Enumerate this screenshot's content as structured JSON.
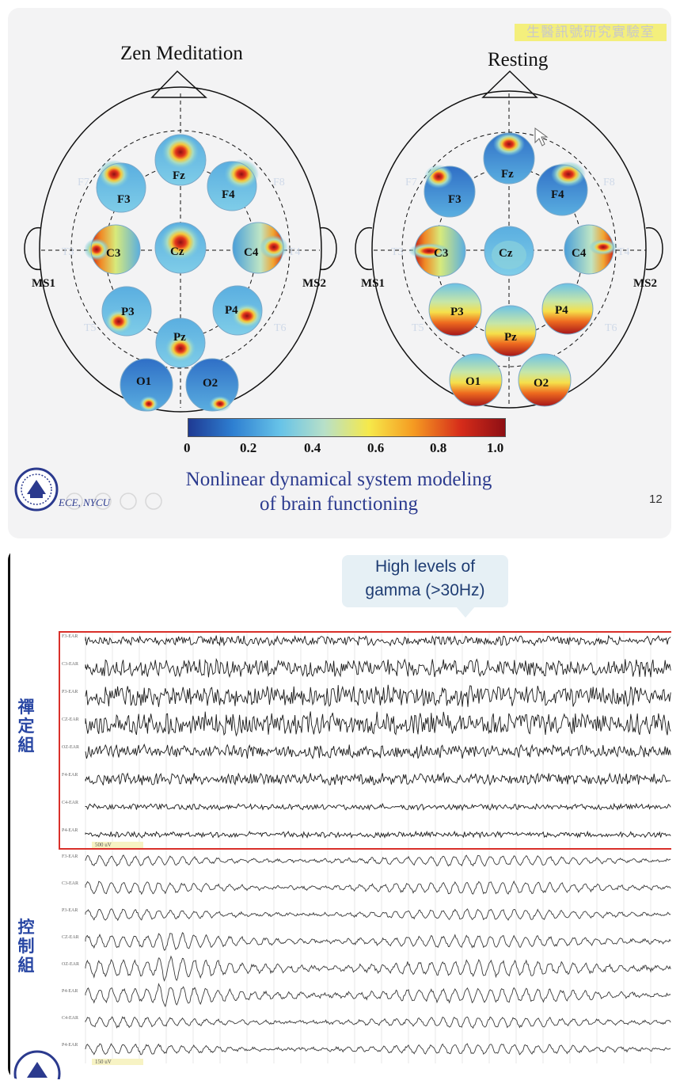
{
  "slide1": {
    "watermark": "生醫訊號研究實驗室",
    "left_title": "Zen Meditation",
    "right_title": "Resting",
    "left_head": {
      "reference_left": "MS1",
      "reference_right": "MS2",
      "electrodes": [
        {
          "label": "Fz",
          "activation": 0.95
        },
        {
          "label": "F3",
          "activation": 0.9
        },
        {
          "label": "F4",
          "activation": 0.9
        },
        {
          "label": "C3",
          "activation": 0.85
        },
        {
          "label": "Cz",
          "activation": 1.0
        },
        {
          "label": "C4",
          "activation": 0.95
        },
        {
          "label": "P3",
          "activation": 0.9
        },
        {
          "label": "P4",
          "activation": 0.9
        },
        {
          "label": "Pz",
          "activation": 0.95
        },
        {
          "label": "O1",
          "activation": 0.7
        },
        {
          "label": "O2",
          "activation": 0.75
        }
      ],
      "faint_labels": [
        "F7",
        "F8",
        "T3",
        "T4",
        "T5",
        "T6"
      ]
    },
    "right_head": {
      "reference_left": "MS1",
      "reference_right": "MS2",
      "electrodes": [
        {
          "label": "Fz",
          "activation": 0.9
        },
        {
          "label": "F3",
          "activation": 0.9
        },
        {
          "label": "F4",
          "activation": 0.9
        },
        {
          "label": "C3",
          "activation": 0.85
        },
        {
          "label": "Cz",
          "activation": 0.35
        },
        {
          "label": "C4",
          "activation": 0.85
        },
        {
          "label": "P3",
          "activation": 1.0
        },
        {
          "label": "P4",
          "activation": 0.95
        },
        {
          "label": "Pz",
          "activation": 0.95
        },
        {
          "label": "O1",
          "activation": 1.0
        },
        {
          "label": "O2",
          "activation": 1.0
        }
      ],
      "faint_labels": [
        "F7",
        "F8",
        "T3",
        "T4",
        "T5",
        "T6"
      ]
    },
    "colorbar": {
      "ticks": [
        "0",
        "0.2",
        "0.4",
        "0.6",
        "0.8",
        "1.0"
      ],
      "colors": [
        "#1f3a93",
        "#2e7fd1",
        "#67c3e8",
        "#b8e0c8",
        "#f6e94a",
        "#f59b22",
        "#d62c1a",
        "#8e0f14"
      ]
    },
    "caption_line1": "Nonlinear dynamical system modeling",
    "caption_line2": "of brain functioning",
    "department": "ECE, NYCU",
    "page_number": "12"
  },
  "slide2": {
    "callout_line1": "High levels of",
    "callout_line2": "gamma (>30Hz)",
    "group1_label": "禪定組",
    "group2_label": "控制組",
    "group1_channels": [
      "F3-EAR",
      "C3-EAR",
      "P3-EAR",
      "CZ-EAR",
      "OZ-EAR",
      "F4-EAR",
      "C4-EAR",
      "P4-EAR"
    ],
    "group2_channels": [
      "F3-EAR",
      "C3-EAR",
      "P3-EAR",
      "CZ-EAR",
      "OZ-EAR",
      "P4-EAR",
      "C4-EAR",
      "P4-EAR"
    ],
    "group1_scale": "500 uV",
    "group2_scale": "150 uV",
    "highlight_color": "#d9302a"
  }
}
